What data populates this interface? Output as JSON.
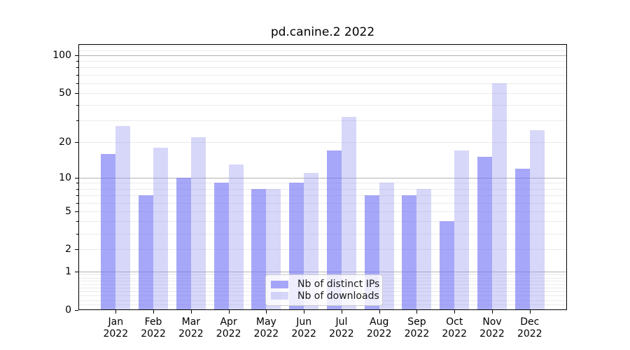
{
  "chart_data": {
    "type": "bar",
    "title": "pd.canine.2 2022",
    "categories": [
      "Jan",
      "Feb",
      "Mar",
      "Apr",
      "May",
      "Jun",
      "Jul",
      "Aug",
      "Sep",
      "Oct",
      "Nov",
      "Dec"
    ],
    "category_year": "2022",
    "series": [
      {
        "name": "Nb of distinct IPs",
        "values": [
          16,
          7,
          10,
          9,
          8,
          9,
          17,
          7,
          7,
          4,
          15,
          12
        ],
        "color": "rgba(108,108,245,0.6)",
        "color_solid": "#a7a7f9"
      },
      {
        "name": "Nb of downloads",
        "values": [
          27,
          18,
          22,
          13,
          8,
          11,
          32,
          9,
          8,
          17,
          60,
          25
        ],
        "color": "rgba(150,150,240,0.38)",
        "color_solid": "#d8d8f9"
      }
    ],
    "yscale": "log10(1+y)",
    "ylim": [
      0,
      122
    ],
    "y_tick_labels": [
      "0",
      "1",
      "2",
      "5",
      "10",
      "20",
      "50",
      "100"
    ],
    "y_tick_values": [
      0,
      1,
      2,
      5,
      10,
      20,
      50,
      100
    ],
    "y_major_gridline_values": [
      1,
      10,
      100
    ],
    "grid": true,
    "legend_position": "lower center"
  },
  "colors": {
    "major_grid": "#b3b3b3",
    "minor_grid": "#ebebeb",
    "spine": "#000000",
    "text": "#000000",
    "legend_text": "#1a1a1a",
    "legend_border": "#cccccc",
    "legend_bg": "rgba(255,255,255,0.8)",
    "background": "#ffffff"
  }
}
